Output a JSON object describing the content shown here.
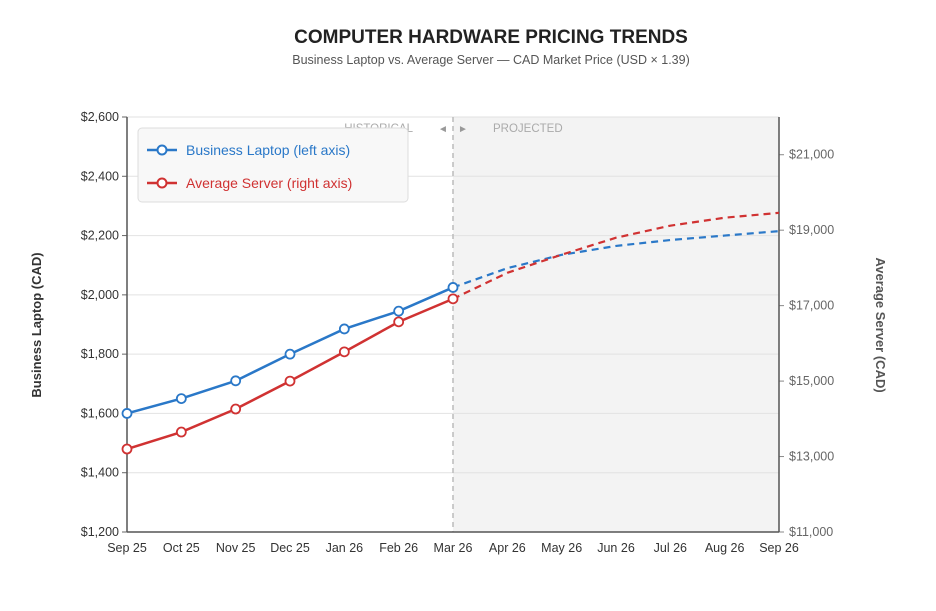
{
  "chart_data": {
    "type": "line",
    "title": "COMPUTER HARDWARE PRICING TRENDS",
    "subtitle": "Business Laptop vs. Average Server — CAD Market Price  (USD × 1.39)",
    "xlabel": "",
    "ylabel_left": "Business Laptop (CAD)",
    "ylabel_right": "Average Server (CAD)",
    "categories": [
      "Sep 25",
      "Oct 25",
      "Nov 25",
      "Dec 25",
      "Jan 26",
      "Feb 26",
      "Mar 26",
      "Apr 26",
      "May 26",
      "Jun 26",
      "Jul 26",
      "Aug 26",
      "Sep 26"
    ],
    "ylim_left": [
      1200,
      2600
    ],
    "ylim_right": [
      11000,
      22000
    ],
    "left_ticks": [
      "$1,200",
      "$1,400",
      "$1,600",
      "$1,800",
      "$2,000",
      "$2,200",
      "$2,400",
      "$2,600"
    ],
    "left_tick_values": [
      1200,
      1400,
      1600,
      1800,
      2000,
      2200,
      2400,
      2600
    ],
    "right_ticks": [
      "$11,000",
      "$13,000",
      "$15,000",
      "$17,000",
      "$19,000",
      "$21,000"
    ],
    "right_tick_values": [
      11000,
      13000,
      15000,
      17000,
      19000,
      21000
    ],
    "historical_label": "HISTORICAL",
    "projected_label": "PROJECTED",
    "projection_start_index": 6,
    "grid": true,
    "legend_position": "top-left",
    "series": [
      {
        "name": "Business Laptop (left axis)",
        "axis": "left",
        "color": "#2a78c8",
        "values": [
          1600,
          1650,
          1710,
          1800,
          1885,
          1945,
          2025,
          2090,
          2135,
          2165,
          2185,
          2200,
          2215
        ]
      },
      {
        "name": "Average Server (right axis)",
        "axis": "right",
        "color": "#d03232",
        "values": [
          13200,
          13650,
          14260,
          15000,
          15775,
          16570,
          17180,
          17870,
          18350,
          18800,
          19120,
          19330,
          19460
        ]
      }
    ]
  }
}
